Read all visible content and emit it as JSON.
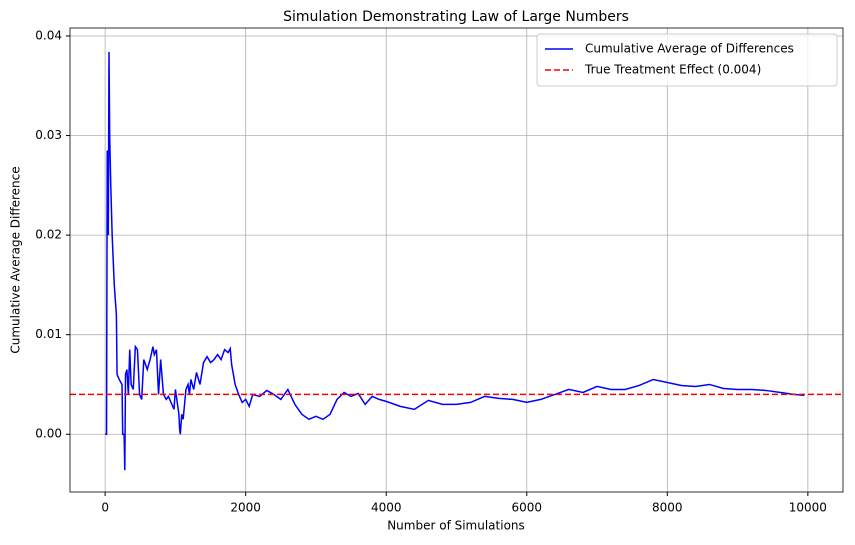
{
  "chart_data": {
    "type": "line",
    "title": "Simulation Demonstrating Law of Large Numbers",
    "xlabel": "Number of Simulations",
    "ylabel": "Cumulative Average Difference",
    "x": [
      0,
      20,
      30,
      45,
      55,
      65,
      80,
      100,
      130,
      160,
      170,
      200,
      240,
      250,
      270,
      280,
      290,
      310,
      330,
      350,
      370,
      400,
      430,
      460,
      490,
      520,
      550,
      600,
      640,
      680,
      700,
      730,
      760,
      790,
      830,
      870,
      900,
      950,
      980,
      1000,
      1050,
      1060,
      1070,
      1090,
      1110,
      1150,
      1180,
      1200,
      1220,
      1260,
      1300,
      1350,
      1400,
      1450,
      1500,
      1550,
      1600,
      1650,
      1700,
      1750,
      1780,
      1800,
      1850,
      1900,
      1950,
      2000,
      2050,
      2100,
      2200,
      2300,
      2400,
      2500,
      2600,
      2700,
      2800,
      2900,
      3000,
      3100,
      3200,
      3300,
      3400,
      3500,
      3600,
      3700,
      3800,
      3900,
      4000,
      4200,
      4400,
      4600,
      4800,
      5000,
      5200,
      5400,
      5600,
      5800,
      6000,
      6200,
      6400,
      6600,
      6800,
      7000,
      7200,
      7400,
      7600,
      7800,
      8000,
      8200,
      8400,
      8600,
      8800,
      9000,
      9200,
      9400,
      9600,
      9800,
      9950
    ],
    "series": [
      {
        "name": "Cumulative Average of Differences",
        "color": "#0000ff",
        "values": [
          0,
          0,
          0.0285,
          0.02,
          0.0384,
          0.03,
          0.025,
          0.02,
          0.015,
          0.012,
          0.006,
          0.0055,
          0.005,
          0,
          0,
          -0.0036,
          0.006,
          0.0065,
          0.004,
          0.0085,
          0.005,
          0.0045,
          0.0088,
          0.0085,
          0.004,
          0.0035,
          0.0075,
          0.0065,
          0.0075,
          0.0088,
          0.008,
          0.0085,
          0.004,
          0.0075,
          0.004,
          0.0035,
          0.0038,
          0.003,
          0.0025,
          0.0045,
          0.002,
          0.0005,
          0,
          0.002,
          0.0015,
          0.0045,
          0.005,
          0.004,
          0.0055,
          0.0045,
          0.0062,
          0.005,
          0.0072,
          0.0078,
          0.0072,
          0.0075,
          0.008,
          0.0075,
          0.0085,
          0.0082,
          0.0086,
          0.007,
          0.005,
          0.004,
          0.0032,
          0.0035,
          0.0028,
          0.004,
          0.0038,
          0.0044,
          0.004,
          0.0035,
          0.0045,
          0.003,
          0.002,
          0.0015,
          0.0018,
          0.0015,
          0.002,
          0.0035,
          0.0042,
          0.0038,
          0.0041,
          0.003,
          0.0038,
          0.0035,
          0.0033,
          0.0028,
          0.0025,
          0.0034,
          0.003,
          0.003,
          0.0032,
          0.0038,
          0.0036,
          0.0035,
          0.0032,
          0.0035,
          0.004,
          0.0045,
          0.0042,
          0.0048,
          0.0045,
          0.0045,
          0.0049,
          0.0055,
          0.0052,
          0.0049,
          0.0048,
          0.005,
          0.0046,
          0.0045,
          0.0045,
          0.0044,
          0.0042,
          0.004,
          0.0039
        ]
      }
    ],
    "reference_lines": [
      {
        "name": "True Treatment Effect (0.004)",
        "color": "#ff0000",
        "value": 0.004,
        "style": "dashed"
      }
    ],
    "xlim": [
      -500,
      10500
    ],
    "ylim": [
      -0.0058,
      0.0408
    ],
    "xticks": [
      0,
      2000,
      4000,
      6000,
      8000,
      10000
    ],
    "yticks": [
      {
        "value": 0,
        "label": "0.00"
      },
      0.01,
      0.02,
      0.03,
      0.04
    ],
    "grid": true,
    "legend": "upper right"
  }
}
